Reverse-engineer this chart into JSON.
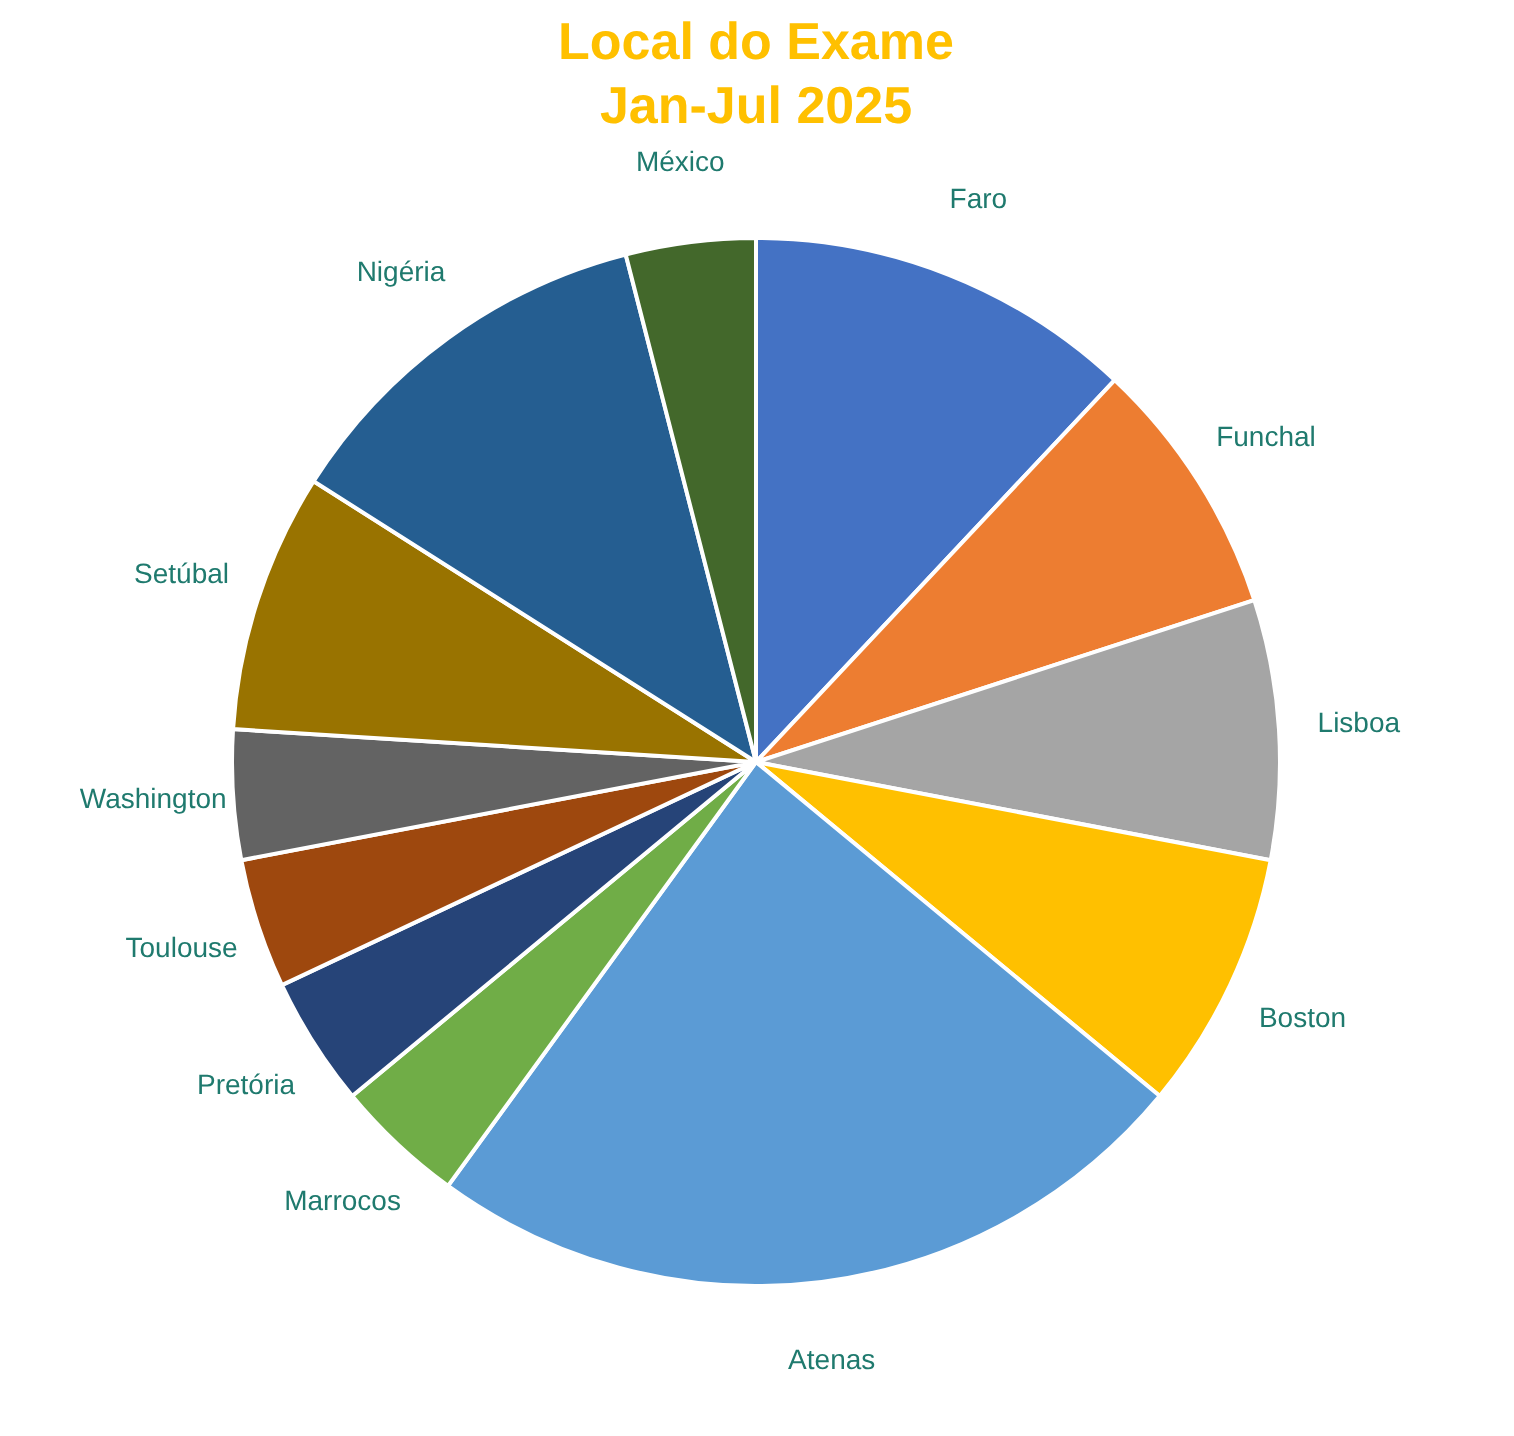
{
  "chart_data": {
    "type": "pie",
    "title": "Local do Exame",
    "subtitle": "Jan-Jul 2025",
    "categories": [
      "Faro",
      "Funchal",
      "Lisboa",
      "Boston",
      "Atenas",
      "Marrocos",
      "Pretória",
      "Toulouse",
      "Washington",
      "Setúbal",
      "Nigéria",
      "México"
    ],
    "values": [
      12,
      8,
      8,
      8,
      24,
      4,
      4,
      4,
      4,
      8,
      12,
      4
    ],
    "colors": [
      "#4472c4",
      "#ed7d31",
      "#a5a5a5",
      "#ffc000",
      "#5b9bd5",
      "#70ad47",
      "#264478",
      "#9e480e",
      "#636363",
      "#997300",
      "#255e91",
      "#43682b"
    ],
    "legend": false
  }
}
